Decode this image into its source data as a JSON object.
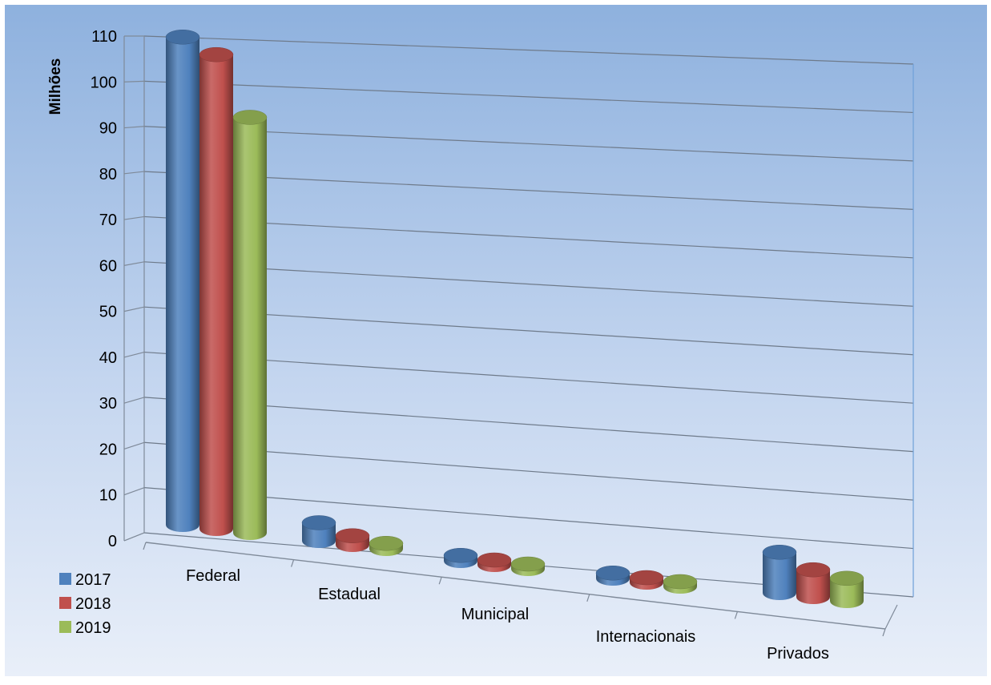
{
  "chart_data": {
    "type": "bar",
    "variant": "3d-cylinder-clustered",
    "title": "",
    "xlabel": "",
    "ylabel": "Milhões",
    "ylim": [
      0,
      110
    ],
    "yticks": [
      0,
      10,
      20,
      30,
      40,
      50,
      60,
      70,
      80,
      90,
      100,
      110
    ],
    "grid": true,
    "legend_position": "bottom-left",
    "categories": [
      "Federal",
      "Estadual",
      "Municipal",
      "Internacionais",
      "Privados"
    ],
    "series": [
      {
        "name": "2017",
        "color": "#4F81BD",
        "values": [
          108,
          4,
          1.2,
          1.2,
          9
        ]
      },
      {
        "name": "2018",
        "color": "#C0504D",
        "values": [
          105,
          2,
          1.0,
          1.0,
          6
        ]
      },
      {
        "name": "2019",
        "color": "#9BBB59",
        "values": [
          92,
          1.2,
          0.8,
          1.0,
          5
        ]
      }
    ]
  }
}
